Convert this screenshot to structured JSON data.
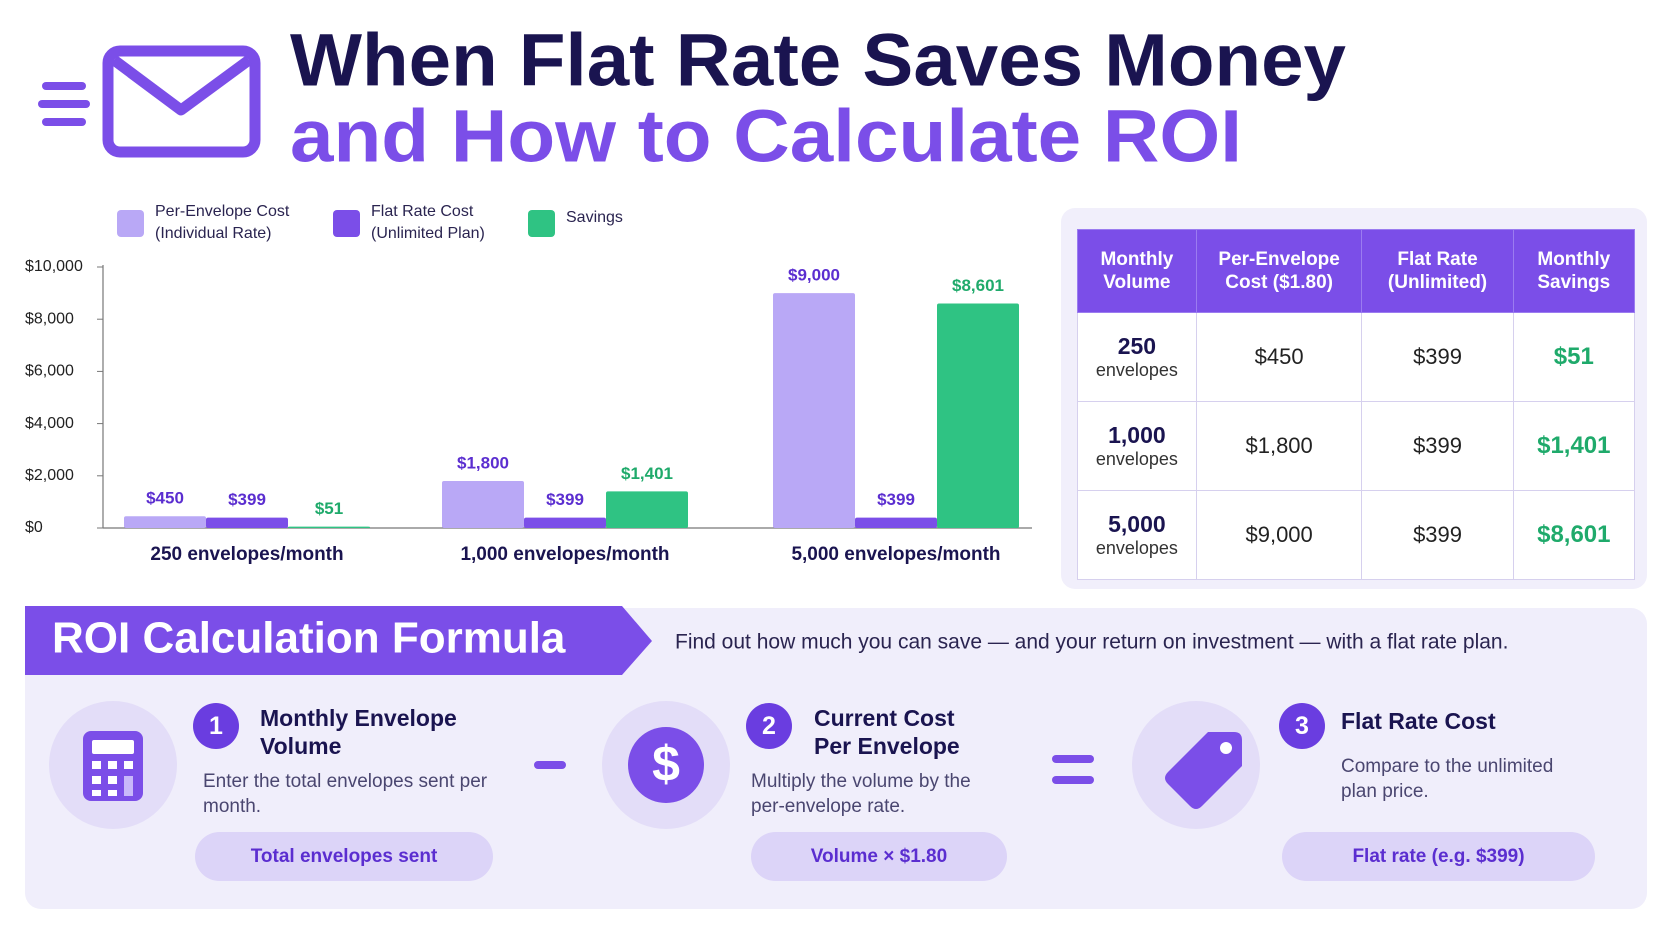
{
  "header": {
    "title": "When Flat Rate Saves Money",
    "subtitle": "and How to Calculate ROI"
  },
  "chart_data": {
    "type": "bar",
    "categories": [
      "250 envelopes/month",
      "1,000 envelopes/month",
      "5,000 envelopes/month"
    ],
    "series": [
      {
        "name": "Per-Envelope Cost (Individual Rate)",
        "color": "#b9a8f6",
        "values": [
          450,
          1800,
          9000
        ],
        "value_labels": [
          "$450",
          "$1,800",
          "$9,000"
        ]
      },
      {
        "name": "Flat Rate Cost (Unlimited Plan)",
        "color": "#7b4ee8",
        "values": [
          399,
          399,
          399
        ],
        "value_labels": [
          "$399",
          "$399",
          "$399"
        ]
      },
      {
        "name": "Savings",
        "color": "#2fc383",
        "values": [
          51,
          1401,
          8601
        ],
        "value_labels": [
          "$51",
          "$1,401",
          "$8,601"
        ]
      }
    ],
    "ylim": [
      0,
      10000
    ],
    "yticks": [
      {
        "value": 0,
        "label": "$0"
      },
      {
        "value": 2000,
        "label": "$2,000"
      },
      {
        "value": 4000,
        "label": "$4,000"
      },
      {
        "value": 6000,
        "label": "$6,000"
      },
      {
        "value": 8000,
        "label": "$8,000"
      },
      {
        "value": 10000,
        "label": "$10,000"
      }
    ],
    "legend": "top-left",
    "grid": false
  },
  "table": {
    "columns": [
      "Monthly Volume",
      "Per-Envelope Cost ($1.80)",
      "Flat Rate (Unlimited)",
      "Monthly Savings"
    ],
    "rows": [
      {
        "volume": "250",
        "unit": "envelopes",
        "cells": [
          "$450",
          "$399",
          "$51"
        ]
      },
      {
        "volume": "1,000",
        "unit": "envelopes",
        "cells": [
          "$1,800",
          "$399",
          "$1,401"
        ]
      },
      {
        "volume": "5,000",
        "unit": "envelopes",
        "cells": [
          "$9,000",
          "$399",
          "$8,601"
        ]
      }
    ]
  },
  "formula": {
    "title": "ROI Calculation Formula",
    "description": "Find out how much you can save — and your return on investment — with a flat rate plan.",
    "steps": [
      {
        "number": "1",
        "title": "Monthly Envelope Volume",
        "text": "Enter the total envelopes sent per month.",
        "pill": "Total envelopes sent"
      },
      {
        "number": "2",
        "title": "Current Cost Per Envelope",
        "text": "Multiply the volume by the per-envelope rate.",
        "pill": "Volume × $1.80"
      },
      {
        "number": "3",
        "title": "Flat Rate Cost",
        "text": "Compare to the unlimited plan price.",
        "pill": "Flat rate (e.g. $399)"
      }
    ]
  }
}
